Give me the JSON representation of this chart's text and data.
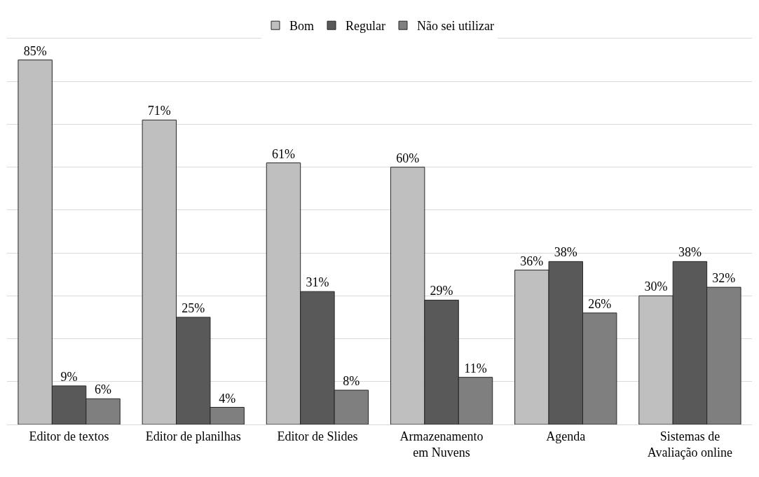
{
  "chart_data": {
    "type": "bar",
    "categories": [
      "Editor de textos",
      "Editor de planilhas",
      "Editor de Slides",
      "Armazenamento\nem Nuvens",
      "Agenda",
      "Sistemas de\nAvaliação online"
    ],
    "series": [
      {
        "name": "Bom",
        "color": "#bfbfbf",
        "values": [
          85,
          71,
          61,
          60,
          36,
          30
        ],
        "value_labels": [
          "85%",
          "71%",
          "61%",
          "60%",
          "36%",
          "30%"
        ]
      },
      {
        "name": "Regular",
        "color": "#595959",
        "values": [
          9,
          25,
          31,
          29,
          38,
          38
        ],
        "value_labels": [
          "9%",
          "25%",
          "31%",
          "29%",
          "38%",
          "38%"
        ]
      },
      {
        "name": "Não sei utilizar",
        "color": "#7f7f7f",
        "values": [
          6,
          4,
          8,
          11,
          26,
          32
        ],
        "value_labels": [
          "6%",
          "4%",
          "8%",
          "11%",
          "26%",
          "32%"
        ]
      }
    ],
    "ylim": [
      0,
      90
    ],
    "yticks": [
      {
        "value": 0,
        "label": null
      },
      {
        "value": 10,
        "label": null
      },
      {
        "value": 20,
        "label": null
      },
      {
        "value": 30,
        "label": null
      },
      {
        "value": 40,
        "label": null
      },
      {
        "value": 50,
        "label": null
      },
      {
        "value": 60,
        "label": null
      },
      {
        "value": 70,
        "label": null
      },
      {
        "value": 80,
        "label": null
      },
      {
        "value": 90,
        "label": null
      }
    ],
    "tick_labels": "x",
    "grid": "y",
    "legend": "top"
  }
}
